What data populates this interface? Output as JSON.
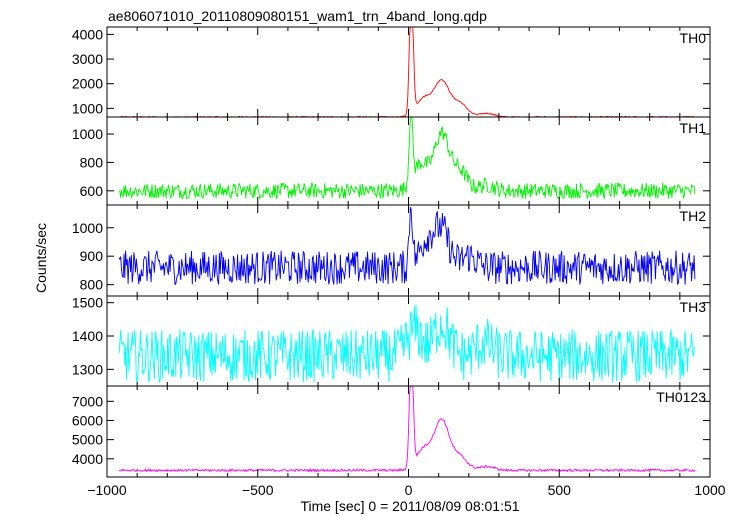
{
  "chart_data": {
    "type": "line",
    "title": "ae806071010_20110809080151_wam1_trn_4band_long.qdp",
    "xlabel": "Time [sec] 0 = 2011/08/09 08:01:51",
    "ylabel": "Counts/sec",
    "xlim": [
      -1000,
      1000
    ],
    "x_ticks": [
      -1000,
      -500,
      0,
      500,
      1000
    ],
    "x_tick_labels": [
      "−1000",
      "−500",
      "0",
      "500",
      "1000"
    ],
    "x_data_range": [
      -960,
      950
    ],
    "series": [
      {
        "name": "TH0",
        "color": "#ff0000",
        "ylim": [
          650,
          4300
        ],
        "yticks": [
          1000,
          2000,
          3000,
          4000
        ],
        "baseline": 650,
        "noise": 25,
        "peaks": [
          {
            "x": 8,
            "y": 4200
          },
          {
            "x": 12,
            "y": 2800
          },
          {
            "x": 50,
            "y": 1400
          },
          {
            "x": 110,
            "y": 2100
          },
          {
            "x": 170,
            "y": 1200
          },
          {
            "x": 260,
            "y": 800
          }
        ]
      },
      {
        "name": "TH1",
        "color": "#00ee00",
        "ylim": [
          500,
          1120
        ],
        "yticks": [
          600,
          800,
          1000
        ],
        "baseline": 600,
        "noise": 55,
        "peaks": [
          {
            "x": 8,
            "y": 1100
          },
          {
            "x": 40,
            "y": 790
          },
          {
            "x": 110,
            "y": 1000
          },
          {
            "x": 170,
            "y": 740
          },
          {
            "x": 260,
            "y": 640
          }
        ]
      },
      {
        "name": "TH2",
        "color": "#0000ee",
        "ylim": [
          760,
          1080
        ],
        "yticks": [
          800,
          900,
          1000
        ],
        "baseline": 860,
        "noise": 60,
        "peaks": [
          {
            "x": 8,
            "y": 1075
          },
          {
            "x": 60,
            "y": 950
          },
          {
            "x": 110,
            "y": 990
          },
          {
            "x": 200,
            "y": 900
          }
        ]
      },
      {
        "name": "TH3",
        "color": "#00ffff",
        "ylim": [
          1250,
          1520
        ],
        "yticks": [
          1300,
          1400,
          1500
        ],
        "baseline": 1340,
        "noise": 80,
        "peaks": [
          {
            "x": 20,
            "y": 1420
          },
          {
            "x": 110,
            "y": 1440
          },
          {
            "x": 250,
            "y": 1380
          }
        ]
      },
      {
        "name": "TH0123",
        "color": "#ff00ff",
        "ylim": [
          3050,
          7800
        ],
        "yticks": [
          4000,
          5000,
          6000,
          7000
        ],
        "baseline": 3400,
        "noise": 60,
        "peaks": [
          {
            "x": 8,
            "y": 7800
          },
          {
            "x": 12,
            "y": 5800
          },
          {
            "x": 50,
            "y": 4500
          },
          {
            "x": 110,
            "y": 6000
          },
          {
            "x": 170,
            "y": 4100
          },
          {
            "x": 260,
            "y": 3600
          }
        ]
      }
    ]
  }
}
